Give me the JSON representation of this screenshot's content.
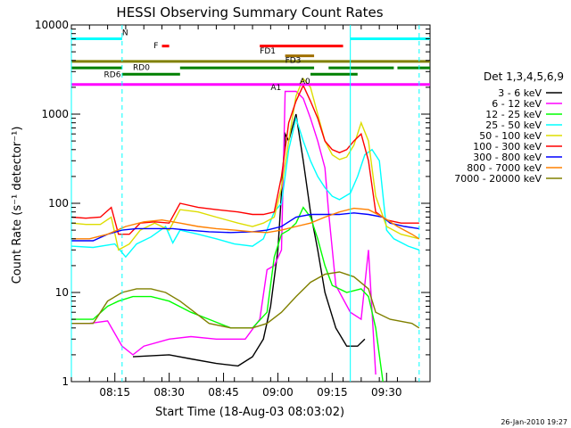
{
  "chart_data": {
    "type": "line",
    "title": "HESSI Observing Summary Count Rates",
    "xlabel": "Start Time (18-Aug-03 08:03:02)",
    "ylabel": "Count Rate (s⁻¹ detector⁻¹)",
    "y_scale": "log",
    "ylim": [
      1,
      10000
    ],
    "x_unit": "minutes after 08:03:02",
    "xlim": [
      0,
      99
    ],
    "x_ticks": [
      {
        "label": "08:15",
        "x": 12
      },
      {
        "label": "08:30",
        "x": 27
      },
      {
        "label": "08:45",
        "x": 42
      },
      {
        "label": "09:00",
        "x": 57
      },
      {
        "label": "09:15",
        "x": 72
      },
      {
        "label": "09:30",
        "x": 87
      }
    ],
    "y_ticks": [
      {
        "label": "1",
        "y": 1
      },
      {
        "label": "10",
        "y": 10
      },
      {
        "label": "100",
        "y": 100
      },
      {
        "label": "1000",
        "y": 1000
      },
      {
        "label": "10000",
        "y": 10000
      }
    ],
    "legend_title": "Det 1,3,4,5,6,9",
    "legend_position": "right",
    "series": [
      {
        "name": "3 - 6 keV",
        "color": "#000000",
        "points": [
          [
            0,
            null
          ],
          [
            14,
            null
          ],
          [
            17,
            1.9
          ],
          [
            27,
            2.0
          ],
          [
            33,
            1.8
          ],
          [
            40,
            1.6
          ],
          [
            46,
            1.5
          ],
          [
            50,
            1.9
          ],
          [
            53,
            3.0
          ],
          [
            55,
            7
          ],
          [
            57,
            30
          ],
          [
            59,
            600
          ],
          [
            60,
            500
          ],
          [
            62,
            1000
          ],
          [
            64,
            300
          ],
          [
            66,
            80
          ],
          [
            68,
            30
          ],
          [
            70,
            10
          ],
          [
            73,
            4
          ],
          [
            76,
            2.5
          ],
          [
            79,
            2.5
          ],
          [
            81,
            3
          ],
          [
            84,
            null
          ]
        ]
      },
      {
        "name": "6 - 12 keV",
        "color": "#ff00ff",
        "points": [
          [
            0,
            4.5
          ],
          [
            5,
            4.5
          ],
          [
            10,
            4.8
          ],
          [
            14,
            2.5
          ],
          [
            17,
            2
          ],
          [
            20,
            2.5
          ],
          [
            27,
            3
          ],
          [
            33,
            3.2
          ],
          [
            40,
            3
          ],
          [
            48,
            3
          ],
          [
            52,
            5
          ],
          [
            54,
            18
          ],
          [
            56,
            20
          ],
          [
            58,
            30
          ],
          [
            59,
            1800
          ],
          [
            62,
            1800
          ],
          [
            64,
            1500
          ],
          [
            66,
            900
          ],
          [
            68,
            500
          ],
          [
            70,
            250
          ],
          [
            71,
            80
          ],
          [
            73,
            12
          ],
          [
            77,
            6
          ],
          [
            80,
            5
          ],
          [
            82,
            30
          ],
          [
            84,
            1.2
          ]
        ]
      },
      {
        "name": "12 - 25 keV",
        "color": "#00ff00",
        "points": [
          [
            0,
            5
          ],
          [
            6,
            5
          ],
          [
            10,
            7
          ],
          [
            13,
            8
          ],
          [
            17,
            9
          ],
          [
            22,
            9
          ],
          [
            27,
            8
          ],
          [
            33,
            6
          ],
          [
            38,
            5
          ],
          [
            44,
            4
          ],
          [
            50,
            4
          ],
          [
            54,
            6
          ],
          [
            56,
            25
          ],
          [
            58,
            45
          ],
          [
            60,
            50
          ],
          [
            62,
            60
          ],
          [
            64,
            90
          ],
          [
            66,
            70
          ],
          [
            68,
            40
          ],
          [
            70,
            20
          ],
          [
            72,
            12
          ],
          [
            76,
            10
          ],
          [
            80,
            11
          ],
          [
            82,
            9
          ],
          [
            84,
            4
          ],
          [
            86,
            1
          ]
        ]
      },
      {
        "name": "25 - 50 keV",
        "color": "#00ffff",
        "points": [
          [
            0,
            33
          ],
          [
            6,
            32
          ],
          [
            12,
            35
          ],
          [
            15,
            25
          ],
          [
            18,
            35
          ],
          [
            22,
            42
          ],
          [
            26,
            55
          ],
          [
            28,
            36
          ],
          [
            30,
            50
          ],
          [
            35,
            45
          ],
          [
            40,
            40
          ],
          [
            45,
            35
          ],
          [
            50,
            33
          ],
          [
            53,
            40
          ],
          [
            56,
            80
          ],
          [
            58,
            100
          ],
          [
            60,
            400
          ],
          [
            62,
            900
          ],
          [
            64,
            500
          ],
          [
            66,
            300
          ],
          [
            68,
            200
          ],
          [
            70,
            150
          ],
          [
            72,
            120
          ],
          [
            74,
            110
          ],
          [
            77,
            130
          ],
          [
            79,
            200
          ],
          [
            81,
            350
          ],
          [
            83,
            400
          ],
          [
            85,
            300
          ],
          [
            87,
            50
          ],
          [
            89,
            40
          ],
          [
            93,
            33
          ],
          [
            96,
            30
          ]
        ]
      },
      {
        "name": "50 - 100 keV",
        "color": "#dddd00",
        "points": [
          [
            0,
            60
          ],
          [
            4,
            58
          ],
          [
            8,
            58
          ],
          [
            11,
            70
          ],
          [
            13,
            30
          ],
          [
            16,
            35
          ],
          [
            19,
            50
          ],
          [
            23,
            60
          ],
          [
            27,
            50
          ],
          [
            30,
            85
          ],
          [
            35,
            80
          ],
          [
            40,
            70
          ],
          [
            46,
            60
          ],
          [
            50,
            55
          ],
          [
            53,
            60
          ],
          [
            56,
            70
          ],
          [
            58,
            150
          ],
          [
            60,
            500
          ],
          [
            62,
            1600
          ],
          [
            64,
            2500
          ],
          [
            66,
            2000
          ],
          [
            68,
            1000
          ],
          [
            70,
            500
          ],
          [
            72,
            350
          ],
          [
            74,
            310
          ],
          [
            76,
            330
          ],
          [
            78,
            450
          ],
          [
            80,
            800
          ],
          [
            82,
            500
          ],
          [
            84,
            120
          ],
          [
            87,
            55
          ],
          [
            91,
            45
          ],
          [
            96,
            40
          ]
        ]
      },
      {
        "name": "100 - 300 keV",
        "color": "#ff0000",
        "points": [
          [
            0,
            70
          ],
          [
            4,
            68
          ],
          [
            8,
            70
          ],
          [
            11,
            90
          ],
          [
            13,
            45
          ],
          [
            16,
            45
          ],
          [
            19,
            60
          ],
          [
            23,
            62
          ],
          [
            27,
            60
          ],
          [
            30,
            100
          ],
          [
            35,
            90
          ],
          [
            40,
            85
          ],
          [
            46,
            80
          ],
          [
            50,
            75
          ],
          [
            53,
            75
          ],
          [
            56,
            80
          ],
          [
            58,
            200
          ],
          [
            60,
            800
          ],
          [
            62,
            1400
          ],
          [
            64,
            2100
          ],
          [
            66,
            1400
          ],
          [
            68,
            900
          ],
          [
            70,
            500
          ],
          [
            72,
            400
          ],
          [
            74,
            370
          ],
          [
            76,
            400
          ],
          [
            78,
            500
          ],
          [
            80,
            600
          ],
          [
            82,
            300
          ],
          [
            84,
            80
          ],
          [
            87,
            65
          ],
          [
            91,
            60
          ],
          [
            96,
            60
          ]
        ]
      },
      {
        "name": "300 - 800 keV",
        "color": "#0000ff",
        "points": [
          [
            0,
            38
          ],
          [
            6,
            38
          ],
          [
            10,
            45
          ],
          [
            14,
            50
          ],
          [
            18,
            52
          ],
          [
            23,
            52
          ],
          [
            28,
            52
          ],
          [
            32,
            50
          ],
          [
            38,
            48
          ],
          [
            44,
            47
          ],
          [
            50,
            48
          ],
          [
            54,
            50
          ],
          [
            58,
            55
          ],
          [
            62,
            70
          ],
          [
            66,
            75
          ],
          [
            70,
            75
          ],
          [
            74,
            75
          ],
          [
            78,
            78
          ],
          [
            82,
            75
          ],
          [
            86,
            70
          ],
          [
            88,
            60
          ],
          [
            92,
            55
          ],
          [
            96,
            52
          ]
        ]
      },
      {
        "name": "800 - 7000 keV",
        "color": "#ff8000",
        "points": [
          [
            0,
            40
          ],
          [
            5,
            40
          ],
          [
            10,
            45
          ],
          [
            15,
            55
          ],
          [
            20,
            62
          ],
          [
            25,
            65
          ],
          [
            30,
            60
          ],
          [
            35,
            55
          ],
          [
            40,
            52
          ],
          [
            45,
            50
          ],
          [
            50,
            48
          ],
          [
            54,
            47
          ],
          [
            58,
            50
          ],
          [
            62,
            55
          ],
          [
            66,
            60
          ],
          [
            70,
            70
          ],
          [
            74,
            80
          ],
          [
            78,
            88
          ],
          [
            82,
            85
          ],
          [
            86,
            70
          ],
          [
            90,
            55
          ],
          [
            94,
            45
          ],
          [
            96,
            40
          ]
        ]
      },
      {
        "name": "7000 - 20000 keV",
        "color": "#808000",
        "points": [
          [
            0,
            4.5
          ],
          [
            6,
            4.5
          ],
          [
            10,
            8
          ],
          [
            14,
            10
          ],
          [
            18,
            11
          ],
          [
            22,
            11
          ],
          [
            26,
            10
          ],
          [
            30,
            8
          ],
          [
            34,
            6
          ],
          [
            38,
            4.5
          ],
          [
            44,
            4
          ],
          [
            50,
            4
          ],
          [
            54,
            4.5
          ],
          [
            58,
            6
          ],
          [
            62,
            9
          ],
          [
            66,
            13
          ],
          [
            70,
            16
          ],
          [
            74,
            17
          ],
          [
            78,
            15
          ],
          [
            82,
            11
          ],
          [
            84,
            6
          ],
          [
            88,
            5
          ],
          [
            94,
            4.5
          ],
          [
            96,
            4
          ]
        ]
      }
    ],
    "state_bars": [
      {
        "label": "N",
        "color": "#00ffff",
        "y": 7000,
        "segments": [
          [
            0,
            14
          ],
          [
            77,
            99
          ]
        ]
      },
      {
        "label": "F",
        "color": "#ff0000",
        "y": 5800,
        "segments": [
          [
            25,
            27
          ]
        ]
      },
      {
        "label": "FD1",
        "color": "#ff0000",
        "y": 5800,
        "segments": [
          [
            52,
            75
          ]
        ]
      },
      {
        "label": "FD3",
        "color": "#a07000",
        "y": 4500,
        "segments": [
          [
            59,
            67
          ]
        ]
      },
      {
        "label": "",
        "color": "#808000",
        "y": 3900,
        "segments": [
          [
            0,
            99
          ]
        ]
      },
      {
        "label": "RD0",
        "color": "#008000",
        "y": 3300,
        "segments": [
          [
            0,
            14
          ],
          [
            30,
            67
          ],
          [
            71,
            89
          ],
          [
            90,
            99
          ]
        ]
      },
      {
        "label": "RD6",
        "color": "#008000",
        "y": 2800,
        "segments": [
          [
            14,
            30
          ],
          [
            66,
            79
          ]
        ]
      },
      {
        "label": "A1",
        "color": "#ff00ff",
        "y": 2150,
        "segments": [
          [
            0,
            99
          ]
        ]
      },
      {
        "label": "A0",
        "color": "#ff00ff",
        "y": 2150,
        "segments": []
      }
    ],
    "vertical_markers": [
      {
        "color": "#00ffff",
        "style": "solid",
        "x": 0
      },
      {
        "color": "#00ffff",
        "style": "dashed",
        "x": 14
      },
      {
        "color": "#00ffff",
        "style": "solid",
        "x": 77
      },
      {
        "color": "#00ffff",
        "style": "dashed",
        "x": 96
      }
    ]
  },
  "footer_timestamp": "26-Jan-2010 19:27"
}
